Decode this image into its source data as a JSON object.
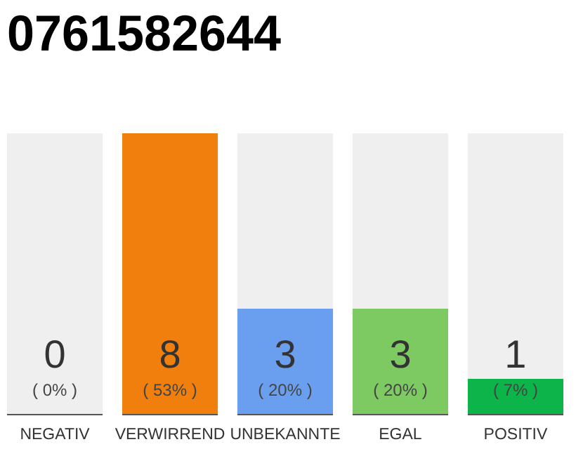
{
  "chart_data": {
    "type": "bar",
    "title": "0761582644",
    "categories": [
      "NEGATIV",
      "VERWIRREND",
      "UNBEKANNTE",
      "EGAL",
      "POSITIV"
    ],
    "values": [
      0,
      8,
      3,
      3,
      1
    ],
    "colors": [
      "#9e9e9e",
      "#f07f0e",
      "#6a9ff0",
      "#7dc962",
      "#0db44a"
    ],
    "data_labels": true,
    "annotations": [
      "( 0% )",
      "( 53% )",
      "( 20% )",
      "( 20% )",
      "( 7% )"
    ]
  }
}
